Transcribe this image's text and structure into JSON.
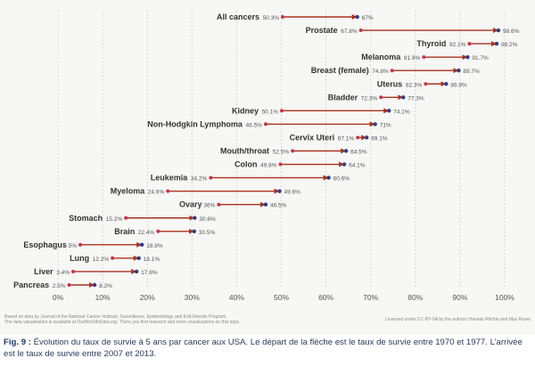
{
  "chart_data": {
    "type": "dumbbell",
    "xlim": [
      0,
      100
    ],
    "xticks": [
      "0%",
      "10%",
      "20%",
      "30%",
      "40%",
      "50%",
      "60%",
      "70%",
      "80%",
      "90%",
      "100%"
    ],
    "rows": [
      {
        "name": "All cancers",
        "start": 50.3,
        "end": 67,
        "start_label": "50.3%",
        "end_label": "67%"
      },
      {
        "name": "Prostate",
        "start": 67.8,
        "end": 98.6,
        "start_label": "67.8%",
        "end_label": "98.6%"
      },
      {
        "name": "Thyroid",
        "start": 92.1,
        "end": 98.2,
        "start_label": "92.1%",
        "end_label": "98.2%"
      },
      {
        "name": "Melanoma",
        "start": 81.9,
        "end": 91.7,
        "start_label": "81.9%",
        "end_label": "91.7%"
      },
      {
        "name": "Breast (female)",
        "start": 74.8,
        "end": 89.7,
        "start_label": "74.8%",
        "end_label": "89.7%"
      },
      {
        "name": "Uterus",
        "start": 82.3,
        "end": 86.9,
        "start_label": "82.3%",
        "end_label": "86.9%"
      },
      {
        "name": "Bladder",
        "start": 72.3,
        "end": 77.3,
        "start_label": "72.3%",
        "end_label": "77.3%"
      },
      {
        "name": "Kidney",
        "start": 50.1,
        "end": 74.1,
        "start_label": "50.1%",
        "end_label": "74.1%"
      },
      {
        "name": "Non-Hodgkin Lymphoma",
        "start": 46.5,
        "end": 71,
        "start_label": "46.5%",
        "end_label": "71%"
      },
      {
        "name": "Cervix Uteri",
        "start": 67.1,
        "end": 69.1,
        "start_label": "67.1%",
        "end_label": "69.1%"
      },
      {
        "name": "Mouth/throat",
        "start": 52.5,
        "end": 64.5,
        "start_label": "52.5%",
        "end_label": "64.5%"
      },
      {
        "name": "Colon",
        "start": 49.8,
        "end": 64.1,
        "start_label": "49.8%",
        "end_label": "64.1%"
      },
      {
        "name": "Leukemia",
        "start": 34.2,
        "end": 60.6,
        "start_label": "34.2%",
        "end_label": "60.6%"
      },
      {
        "name": "Myeloma",
        "start": 24.6,
        "end": 49.6,
        "start_label": "24.6%",
        "end_label": "49.6%"
      },
      {
        "name": "Ovary",
        "start": 36,
        "end": 46.5,
        "start_label": "36%",
        "end_label": "46.5%"
      },
      {
        "name": "Stomach",
        "start": 15.2,
        "end": 30.6,
        "start_label": "15.2%",
        "end_label": "30.6%"
      },
      {
        "name": "Brain",
        "start": 22.4,
        "end": 30.5,
        "start_label": "22.4%",
        "end_label": "30.5%"
      },
      {
        "name": "Esophagus",
        "start": 5,
        "end": 18.8,
        "start_label": "5%",
        "end_label": "18.8%"
      },
      {
        "name": "Lung",
        "start": 12.2,
        "end": 18.1,
        "start_label": "12.2%",
        "end_label": "18.1%"
      },
      {
        "name": "Liver",
        "start": 3.4,
        "end": 17.6,
        "start_label": "3.4%",
        "end_label": "17.6%"
      },
      {
        "name": "Pancreas",
        "start": 2.5,
        "end": 8.2,
        "start_label": "2.5%",
        "end_label": "8.2%"
      }
    ],
    "colors": {
      "arrow": "#a8321e",
      "start_dot": "#c8344a",
      "end_dot": "#2c3e8c",
      "grid": "#cfcfcf",
      "label": "#333333",
      "value_label": "#555555"
    }
  },
  "footer": {
    "source_line1": "Based on data by Journal of the National Cancer Institute; Surveillance, Epidemiology and End Results Program.",
    "source_line2": "The data visualization is available at OurWorldInData.org. There you find research and more visualizations on this topic.",
    "license": "Licensed under CC-BY-SA by the authors Hannah Ritchie and Max Roser."
  },
  "caption": {
    "label": "Fig. 9 :",
    "text": " Évolution du taux de survie à 5 ans par cancer aux USA. Le départ de la flèche est le taux de survie entre 1970 et 1977. L’arrivée est le taux de survie entre 2007 et 2013."
  }
}
